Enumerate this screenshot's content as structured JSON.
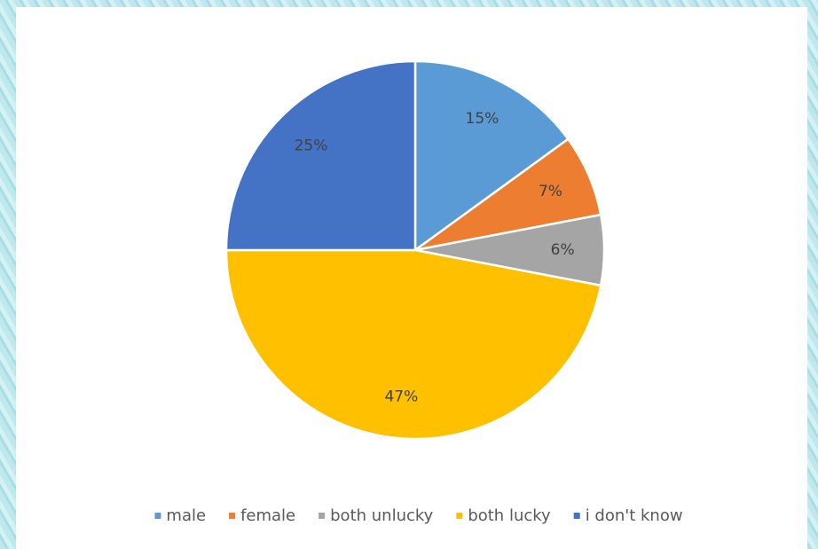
{
  "chart_data": {
    "type": "pie",
    "categories": [
      "male",
      "female",
      "both unlucky",
      "both lucky",
      "i don't know"
    ],
    "values": [
      15,
      7,
      6,
      47,
      25
    ],
    "value_labels": [
      "15%",
      "7%",
      "6%",
      "47%",
      "25%"
    ],
    "colors": [
      "#5b9bd5",
      "#ed7d31",
      "#a5a5a5",
      "#ffc000",
      "#4472c4"
    ],
    "legend": "bottom"
  }
}
